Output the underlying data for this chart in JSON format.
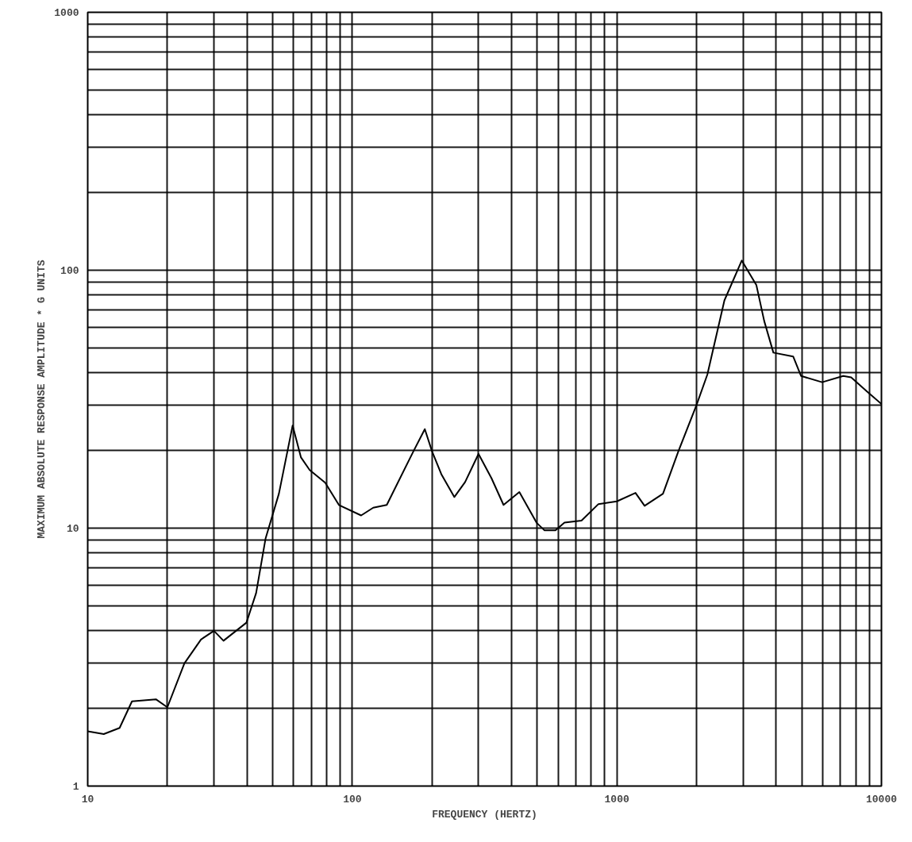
{
  "chart_data": {
    "type": "line",
    "xlabel": "FREQUENCY (HERTZ)",
    "ylabel": "MAXIMUM ABSOLUTE RESPONSE AMPLITUDE * G UNITS",
    "log": "xy",
    "grid": true,
    "marker": "none",
    "line_style": "solid",
    "xlim": [
      10,
      10000
    ],
    "ylim": [
      1,
      1000
    ],
    "xticks": [
      10,
      {
        "value": 20,
        "label": null
      },
      {
        "value": 30,
        "label": null
      },
      {
        "value": 40,
        "label": null
      },
      {
        "value": 50,
        "label": null
      },
      {
        "value": 60,
        "label": null
      },
      {
        "value": 70,
        "label": null
      },
      {
        "value": 80,
        "label": null
      },
      {
        "value": 90,
        "label": null
      },
      100,
      {
        "value": 200,
        "label": null
      },
      {
        "value": 300,
        "label": null
      },
      {
        "value": 400,
        "label": null
      },
      {
        "value": 500,
        "label": null
      },
      {
        "value": 600,
        "label": null
      },
      {
        "value": 700,
        "label": null
      },
      {
        "value": 800,
        "label": null
      },
      {
        "value": 900,
        "label": null
      },
      1000,
      {
        "value": 2000,
        "label": null
      },
      {
        "value": 3000,
        "label": null
      },
      {
        "value": 4000,
        "label": null
      },
      {
        "value": 5000,
        "label": null
      },
      {
        "value": 6000,
        "label": null
      },
      {
        "value": 7000,
        "label": null
      },
      {
        "value": 8000,
        "label": null
      },
      {
        "value": 9000,
        "label": null
      },
      10000
    ],
    "yticks": [
      1,
      {
        "value": 2,
        "label": null
      },
      {
        "value": 3,
        "label": null
      },
      {
        "value": 4,
        "label": null
      },
      {
        "value": 5,
        "label": null
      },
      {
        "value": 6,
        "label": null
      },
      {
        "value": 7,
        "label": null
      },
      {
        "value": 8,
        "label": null
      },
      {
        "value": 9,
        "label": null
      },
      10,
      {
        "value": 20,
        "label": null
      },
      {
        "value": 30,
        "label": null
      },
      {
        "value": 40,
        "label": null
      },
      {
        "value": 50,
        "label": null
      },
      {
        "value": 60,
        "label": null
      },
      {
        "value": 70,
        "label": null
      },
      {
        "value": 80,
        "label": null
      },
      {
        "value": 90,
        "label": null
      },
      100,
      {
        "value": 200,
        "label": null
      },
      {
        "value": 300,
        "label": null
      },
      {
        "value": 400,
        "label": null
      },
      {
        "value": 500,
        "label": null
      },
      {
        "value": 600,
        "label": null
      },
      {
        "value": 700,
        "label": null
      },
      {
        "value": 800,
        "label": null
      },
      {
        "value": 900,
        "label": null
      },
      1000
    ],
    "series": [
      {
        "color": "#000000",
        "x": [
          10,
          11.5,
          13.2,
          14.7,
          18.1,
          20,
          23.2,
          26.8,
          30,
          32.6,
          39.8,
          43.3,
          47,
          52.8,
          59.5,
          64,
          69,
          79,
          89,
          108,
          120,
          135,
          170,
          188,
          200,
          217,
          243,
          267,
          300,
          336,
          373,
          428,
          497,
          533,
          586,
          634,
          735,
          852,
          1000,
          1176,
          1273,
          1494,
          1706,
          2000,
          2198,
          2550,
          2965,
          3368,
          3606,
          3905,
          4638,
          4969,
          5968,
          7170,
          7683,
          8814,
          10000
        ],
        "values": [
          1.63,
          1.59,
          1.68,
          2.13,
          2.17,
          2.02,
          2.99,
          3.7,
          4.0,
          3.66,
          4.3,
          5.6,
          9.1,
          13.6,
          25,
          18.8,
          16.8,
          15.0,
          12.3,
          11.2,
          12.0,
          12.3,
          19.8,
          24.2,
          19.9,
          16.2,
          13.2,
          15.1,
          19.4,
          15.6,
          12.3,
          13.8,
          10.5,
          9.8,
          9.8,
          10.5,
          10.7,
          12.4,
          12.7,
          13.7,
          12.2,
          13.6,
          19.8,
          30,
          39.4,
          76.4,
          109,
          87.5,
          63.5,
          47.9,
          46.3,
          38.9,
          36.8,
          38.9,
          38.4,
          33.9,
          30.3
        ]
      }
    ]
  }
}
